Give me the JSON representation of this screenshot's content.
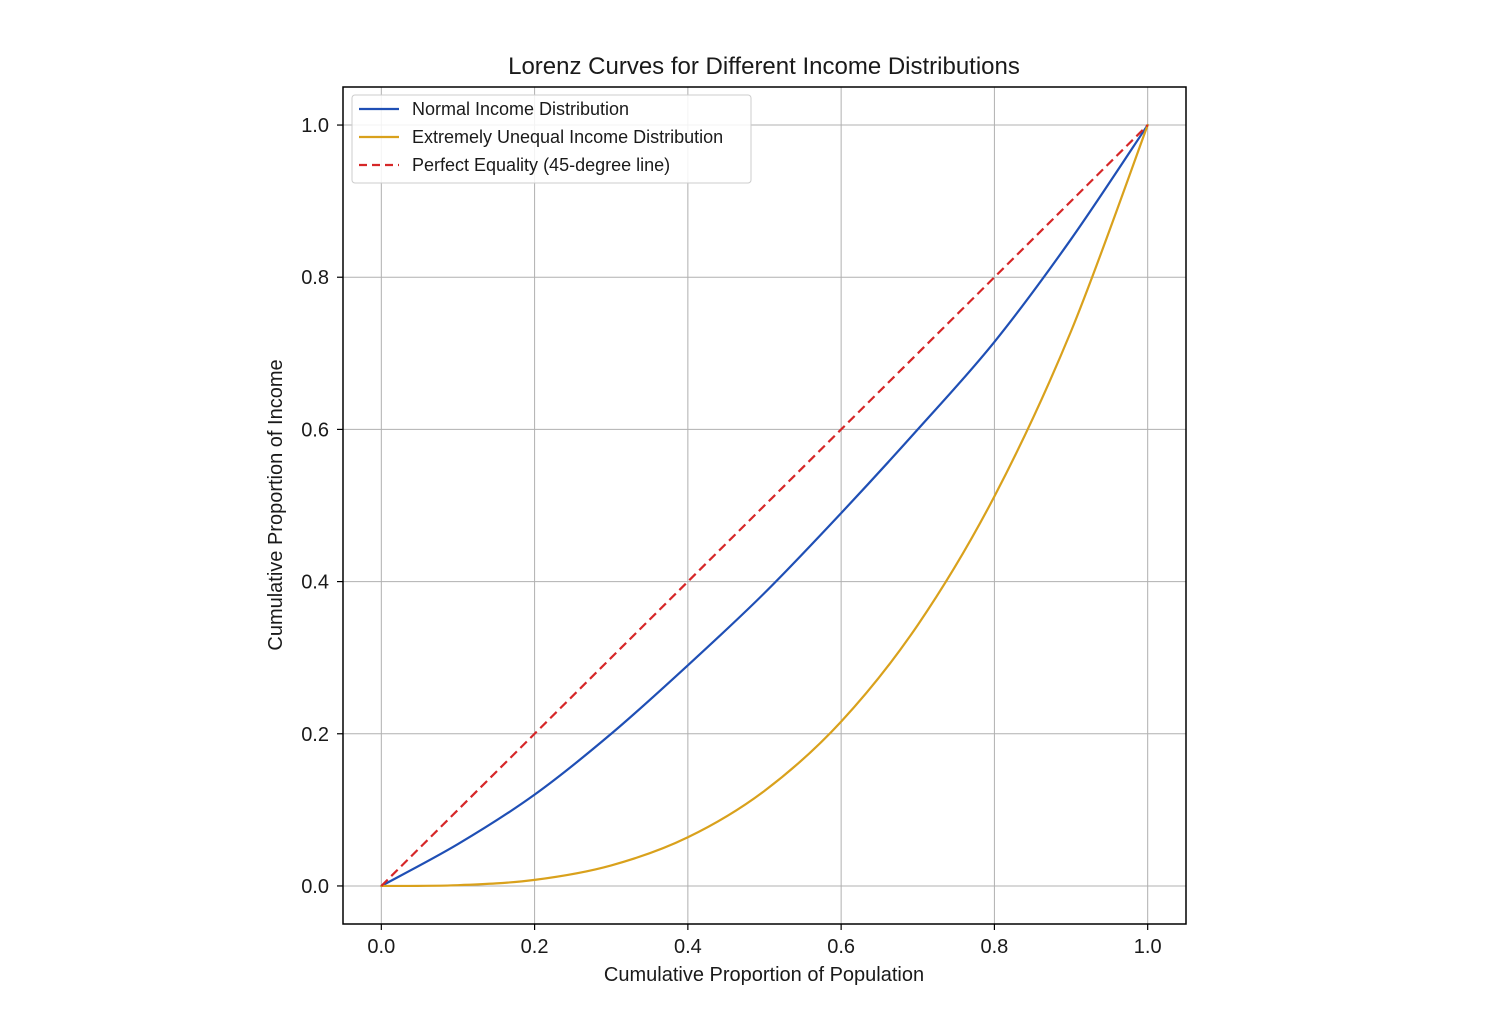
{
  "chart_data": {
    "type": "line",
    "title": "Lorenz Curves for Different Income Distributions",
    "xlabel": "Cumulative Proportion of Population",
    "ylabel": "Cumulative Proportion of Income",
    "xlim": [
      -0.05,
      1.05
    ],
    "ylim": [
      -0.05,
      1.05
    ],
    "x_ticks": [
      0.0,
      0.2,
      0.4,
      0.6,
      0.8,
      1.0
    ],
    "x_tick_labels": [
      "0.0",
      "0.2",
      "0.4",
      "0.6",
      "0.8",
      "1.0"
    ],
    "y_ticks": [
      0.0,
      0.2,
      0.4,
      0.6,
      0.8,
      1.0
    ],
    "y_tick_labels": [
      "0.0",
      "0.2",
      "0.4",
      "0.6",
      "0.8",
      "1.0"
    ],
    "grid": true,
    "legend_position": "top-left",
    "series": [
      {
        "name": "Normal Income Distribution",
        "color": "#1f4fb5",
        "dash": "solid",
        "x": [
          0.0,
          0.1,
          0.2,
          0.3,
          0.4,
          0.5,
          0.6,
          0.7,
          0.8,
          0.9,
          1.0
        ],
        "y": [
          0.0,
          0.055,
          0.12,
          0.2,
          0.29,
          0.385,
          0.49,
          0.6,
          0.715,
          0.85,
          1.0
        ]
      },
      {
        "name": "Extremely Unequal Income Distribution",
        "color": "#d9a11c",
        "dash": "solid",
        "x": [
          0.0,
          0.1,
          0.2,
          0.3,
          0.4,
          0.5,
          0.6,
          0.7,
          0.8,
          0.9,
          1.0
        ],
        "y": [
          0.0,
          0.001,
          0.008,
          0.027,
          0.064,
          0.125,
          0.216,
          0.343,
          0.512,
          0.729,
          1.0
        ]
      },
      {
        "name": "Perfect Equality (45-degree line)",
        "color": "#d62728",
        "dash": "dashed",
        "x": [
          0.0,
          1.0
        ],
        "y": [
          0.0,
          1.0
        ]
      }
    ]
  }
}
